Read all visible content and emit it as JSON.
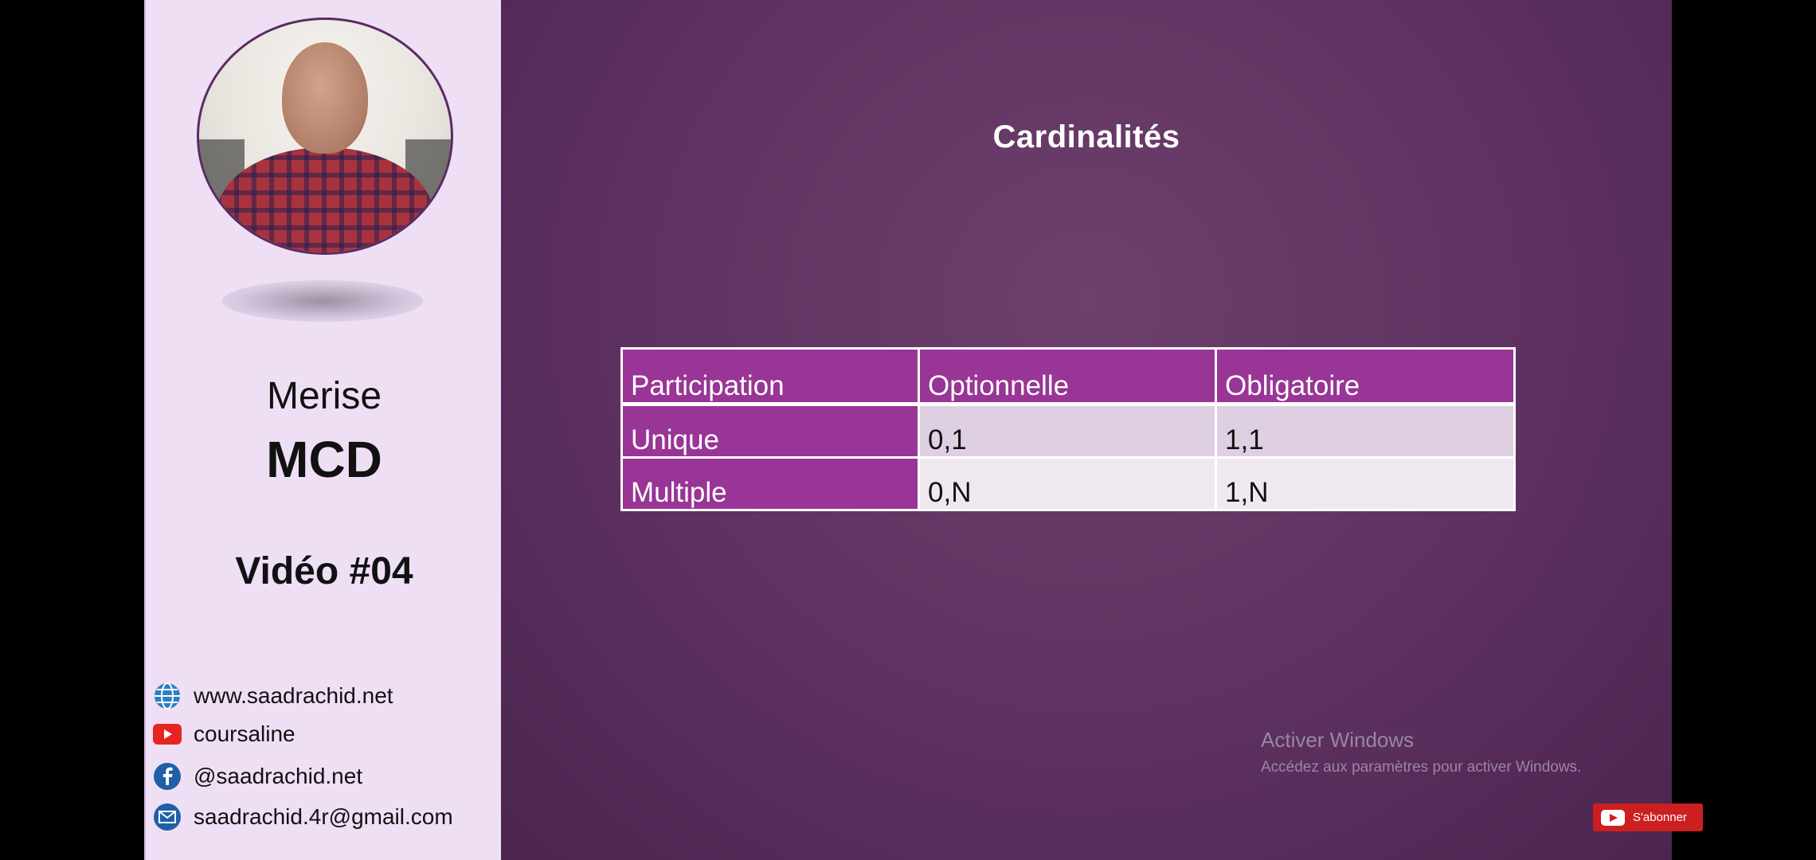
{
  "sidebar": {
    "course": "Merise",
    "subject": "MCD",
    "video_label": "Vidéo #04",
    "contacts": [
      {
        "icon": "globe-icon",
        "text": "www.saadrachid.net"
      },
      {
        "icon": "youtube-icon",
        "text": "coursaline"
      },
      {
        "icon": "facebook-icon",
        "text": "@saadrachid.net"
      },
      {
        "icon": "mail-icon",
        "text": "saadrachid.4r@gmail.com"
      }
    ]
  },
  "slide": {
    "title": "Cardinalités",
    "table": {
      "headers": [
        "Participation",
        "Optionnelle",
        "Obligatoire"
      ],
      "rows": [
        [
          "Unique",
          "0,1",
          "1,1"
        ],
        [
          "Multiple",
          "0,N",
          "1,N"
        ]
      ]
    }
  },
  "watermark": {
    "line1": "Activer Windows",
    "line2": "Accédez aux paramètres pour activer Windows."
  },
  "subscribe_button": {
    "label": "S'abonner"
  },
  "colors": {
    "slide_bg": "#5d3160",
    "table_header": "#983596",
    "sidebar_bg": "#eedff5"
  }
}
